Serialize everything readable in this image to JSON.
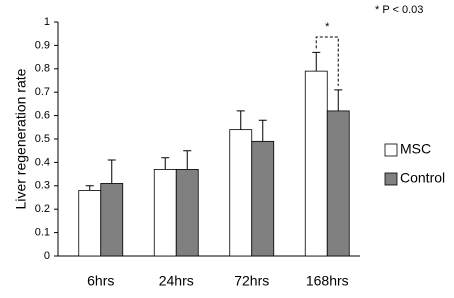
{
  "chart_data": {
    "type": "bar",
    "y_label": "Liver regeneration rate",
    "annotation": "* P < 0.03",
    "significance_label": "*",
    "categories": [
      "6hrs",
      "24hrs",
      "72hrs",
      "168hrs"
    ],
    "series": [
      {
        "name": "MSC",
        "color": "#ffffff",
        "values": [
          0.28,
          0.37,
          0.54,
          0.79
        ],
        "errors": [
          0.02,
          0.05,
          0.08,
          0.08
        ]
      },
      {
        "name": "Control",
        "color": "#808080",
        "values": [
          0.31,
          0.37,
          0.49,
          0.62
        ],
        "errors": [
          0.1,
          0.08,
          0.09,
          0.09
        ]
      }
    ],
    "ylim": [
      0,
      1
    ],
    "yticks": [
      0,
      0.1,
      0.2,
      0.3,
      0.4,
      0.5,
      0.6,
      0.7,
      0.8,
      0.9,
      1
    ],
    "grid": false,
    "legend": "right"
  }
}
